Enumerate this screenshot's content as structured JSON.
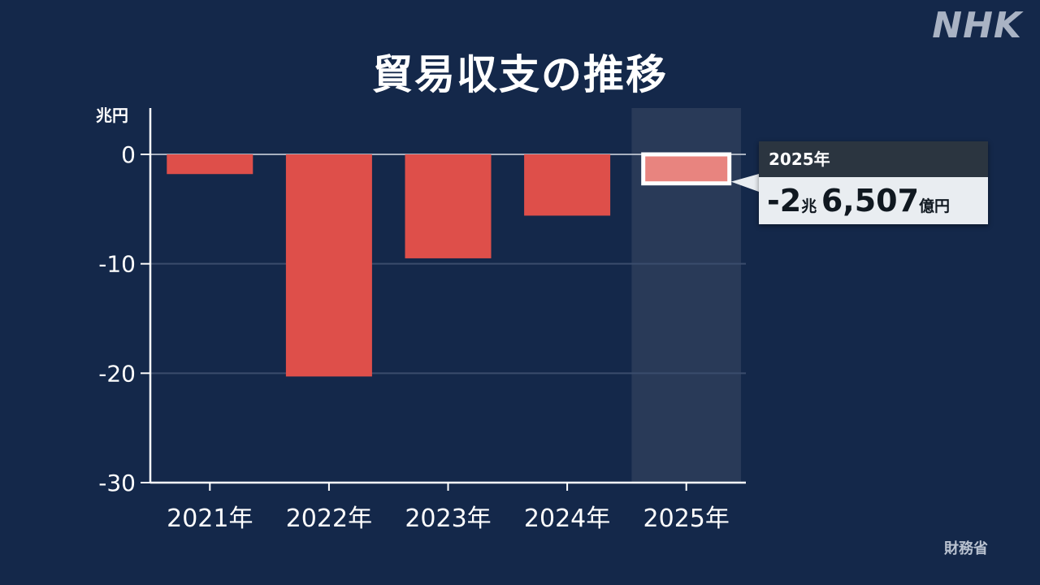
{
  "title": "貿易収支の推移",
  "logo": "NHK",
  "source": "財務省",
  "callout": {
    "year": "2025年",
    "value_sign_trillion": "-2",
    "trillion_unit": "兆",
    "value_billion": "6,507",
    "billion_unit": "億円"
  },
  "colors": {
    "background": "#14284a",
    "bar": "#de4f4a",
    "bar_highlight": "#e8847f",
    "highlight_band": "#293a58"
  },
  "chart_data": {
    "type": "bar",
    "title": "貿易収支の推移",
    "unit": "兆円",
    "categories": [
      "2021年",
      "2022年",
      "2023年",
      "2024年",
      "2025年"
    ],
    "values": [
      -1.8,
      -20.3,
      -9.5,
      -5.6,
      -2.65
    ],
    "yticks": [
      0,
      -10,
      -20,
      -30
    ],
    "ytick_labels": [
      "0",
      "-10",
      "-20",
      "-30"
    ],
    "ylim": [
      -30,
      0
    ],
    "highlight_category": "2025年",
    "grid": true
  }
}
